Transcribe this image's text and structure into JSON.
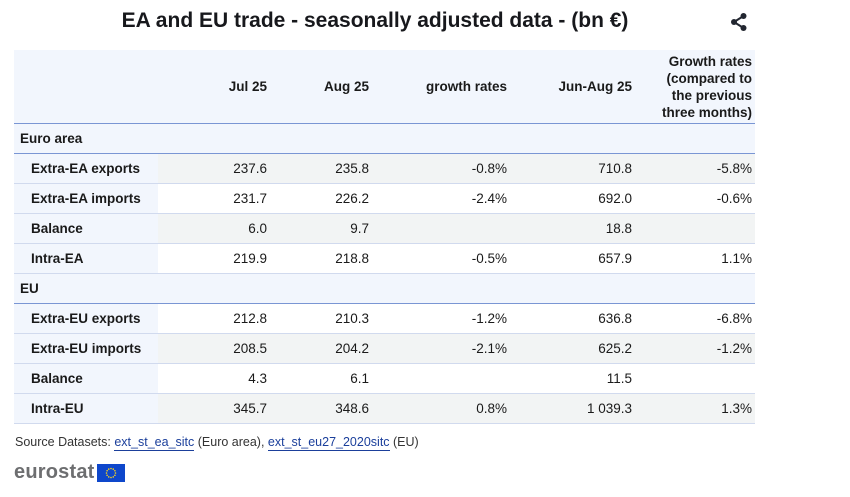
{
  "title": "EA and EU trade - seasonally adjusted data - (bn €)",
  "share_icon": "share-icon",
  "table": {
    "headers": [
      "",
      "Jul 25",
      "Aug 25",
      "growth rates",
      "Jun-Aug 25",
      "Growth rates (compared to the previous three months)"
    ],
    "header_growth3m_lines": [
      "Growth rates",
      "(compared to",
      "the previous",
      "three months)"
    ],
    "sections": [
      {
        "name": "Euro area",
        "rows": [
          {
            "label": "Extra-EA exports",
            "jul": "237.6",
            "aug": "235.8",
            "growth": "-0.8%",
            "junaug": "710.8",
            "growth3m": "-5.8%"
          },
          {
            "label": "Extra-EA imports",
            "jul": "231.7",
            "aug": "226.2",
            "growth": "-2.4%",
            "junaug": "692.0",
            "growth3m": "-0.6%"
          },
          {
            "label": "Balance",
            "jul": "6.0",
            "aug": "9.7",
            "growth": "",
            "junaug": "18.8",
            "growth3m": ""
          },
          {
            "label": "Intra-EA",
            "jul": "219.9",
            "aug": "218.8",
            "growth": "-0.5%",
            "junaug": "657.9",
            "growth3m": "1.1%"
          }
        ]
      },
      {
        "name": "EU",
        "rows": [
          {
            "label": "Extra-EU exports",
            "jul": "212.8",
            "aug": "210.3",
            "growth": "-1.2%",
            "junaug": "636.8",
            "growth3m": "-6.8%"
          },
          {
            "label": "Extra-EU imports",
            "jul": "208.5",
            "aug": "204.2",
            "growth": "-2.1%",
            "junaug": "625.2",
            "growth3m": "-1.2%"
          },
          {
            "label": "Balance",
            "jul": "4.3",
            "aug": "6.1",
            "growth": "",
            "junaug": "11.5",
            "growth3m": ""
          },
          {
            "label": "Intra-EU",
            "jul": "345.7",
            "aug": "348.6",
            "growth": "0.8%",
            "junaug": "1 039.3",
            "growth3m": "1.3%"
          }
        ]
      }
    ]
  },
  "source": {
    "prefix": "Source Datasets: ",
    "link1": "ext_st_ea_sitc",
    "mid": " (Euro area), ",
    "link2": "ext_st_eu27_2020sitc",
    "suffix": " (EU)"
  },
  "logo": {
    "text": "eurostat"
  },
  "colors": {
    "header_bg": "#f2f6fd",
    "shade_bg": "#f2f4f4",
    "rule": "#7a96d4",
    "link": "#1b3f9b",
    "flag": "#0e47cb",
    "flag_stars": "#ffd617"
  }
}
